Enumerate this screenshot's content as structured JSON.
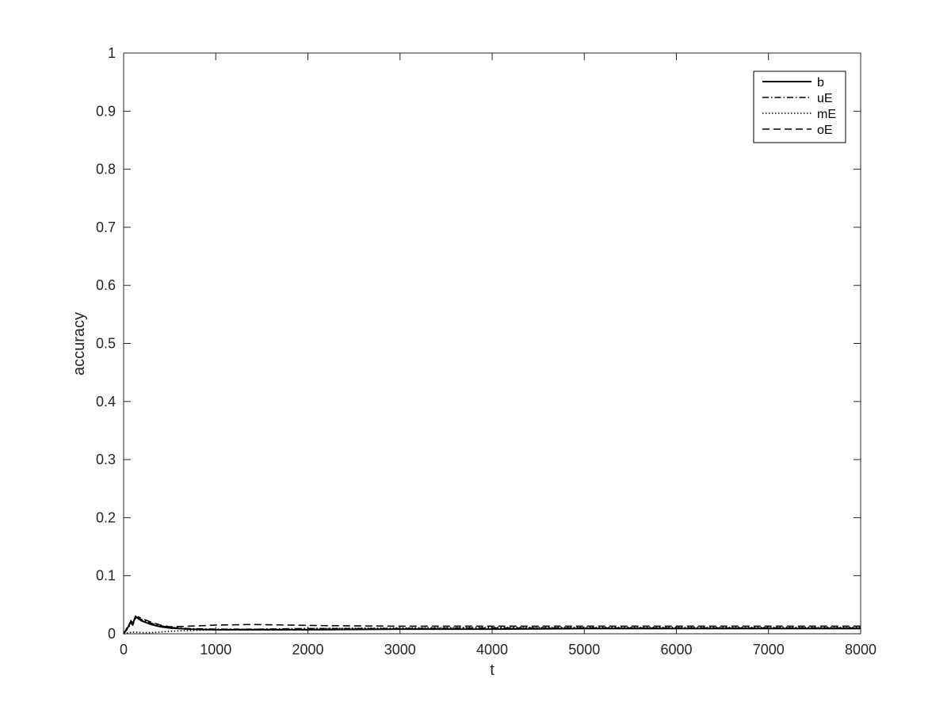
{
  "chart_data": {
    "type": "line",
    "xlabel": "t",
    "ylabel": "accuracy",
    "xlim": [
      0,
      8000
    ],
    "ylim": [
      0,
      1
    ],
    "xticks": [
      "0",
      "1000",
      "2000",
      "3000",
      "4000",
      "5000",
      "6000",
      "7000",
      "8000"
    ],
    "yticks": [
      "0",
      "0.1",
      "0.2",
      "0.3",
      "0.4",
      "0.5",
      "0.6",
      "0.7",
      "0.8",
      "0.9",
      "1"
    ],
    "grid": false,
    "legend_position": "top-right",
    "series": [
      {
        "name": "b",
        "style": "solid",
        "x": [
          0,
          50,
          80,
          100,
          130,
          160,
          200,
          300,
          400,
          500,
          600,
          700,
          1000,
          1500,
          2000,
          3000,
          4000,
          5000,
          6000,
          7000,
          8000
        ],
        "y": [
          0,
          0.012,
          0.022,
          0.018,
          0.03,
          0.026,
          0.022,
          0.016,
          0.012,
          0.01,
          0.009,
          0.008,
          0.007,
          0.007,
          0.007,
          0.008,
          0.008,
          0.009,
          0.009,
          0.009,
          0.009
        ]
      },
      {
        "name": "uE",
        "style": "dashdot",
        "x": [
          0,
          50,
          80,
          100,
          130,
          160,
          200,
          300,
          400,
          500,
          700,
          1000,
          1500,
          2000,
          3000,
          4000,
          5000,
          6000,
          7000,
          8000
        ],
        "y": [
          0,
          0.01,
          0.018,
          0.015,
          0.028,
          0.027,
          0.024,
          0.018,
          0.014,
          0.011,
          0.009,
          0.008,
          0.008,
          0.009,
          0.009,
          0.01,
          0.01,
          0.01,
          0.01,
          0.01
        ]
      },
      {
        "name": "mE",
        "style": "dotted",
        "x": [
          0,
          100,
          200,
          300,
          400,
          500,
          600,
          800,
          1000,
          1500,
          2000,
          3000,
          4000,
          5000,
          6000,
          7000,
          8000
        ],
        "y": [
          0,
          0.003,
          0.002,
          0.002,
          0.003,
          0.004,
          0.005,
          0.006,
          0.007,
          0.008,
          0.009,
          0.01,
          0.011,
          0.011,
          0.011,
          0.011,
          0.011
        ]
      },
      {
        "name": "oE",
        "style": "dashed",
        "x": [
          0,
          50,
          80,
          100,
          130,
          160,
          200,
          300,
          400,
          500,
          700,
          1000,
          1400,
          1800,
          2200,
          3000,
          4000,
          5000,
          6000,
          7000,
          8000
        ],
        "y": [
          0,
          0.014,
          0.02,
          0.016,
          0.027,
          0.029,
          0.026,
          0.02,
          0.015,
          0.012,
          0.013,
          0.015,
          0.016,
          0.015,
          0.014,
          0.013,
          0.013,
          0.013,
          0.013,
          0.013,
          0.013
        ]
      }
    ]
  }
}
